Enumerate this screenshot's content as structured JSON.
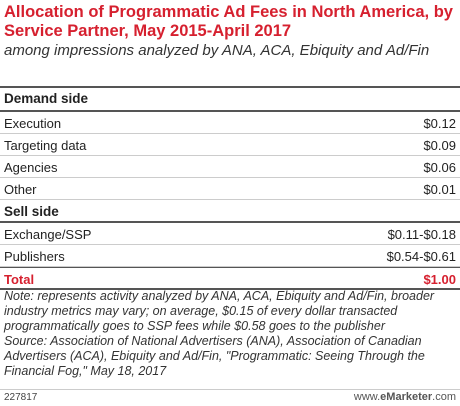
{
  "chart_data": {
    "type": "table",
    "title": "Allocation of Programmatic Ad Fees in North America, by Service Partner, May 2015-April 2017",
    "subtitle": "among impressions analyzed by ANA, ACA, Ebiquity and Ad/Fin",
    "sections": [
      {
        "name": "Demand side",
        "rows": [
          {
            "label": "Execution",
            "value": "$0.12"
          },
          {
            "label": "Targeting data",
            "value": "$0.09"
          },
          {
            "label": "Agencies",
            "value": "$0.06"
          },
          {
            "label": "Other",
            "value": "$0.01"
          }
        ]
      },
      {
        "name": "Sell side",
        "rows": [
          {
            "label": "Exchange/SSP",
            "value": "$0.11-$0.18"
          },
          {
            "label": "Publishers",
            "value": "$0.54-$0.61"
          }
        ]
      }
    ],
    "total": {
      "label": "Total",
      "value": "$1.00"
    }
  },
  "note": "Note: represents activity analyzed by ANA, ACA, Ebiquity and Ad/Fin, broader industry metrics may vary; on average, $0.15 of every dollar transacted programmatically goes to SSP fees while $0.58 goes to the publisher",
  "source": "Source: Association of National Advertisers (ANA), Association of Canadian Advertisers (ACA), Ebiquity and Ad/Fin, \"Programmatic: Seeing Through the Financial Fog,\" May 18, 2017",
  "footer": {
    "chart_id": "227817",
    "brand_prefix": "www.",
    "brand_name": "eMarketer",
    "brand_suffix": ".com"
  },
  "colors": {
    "accent": "#d6202f",
    "text": "#222222",
    "rule": "#555555",
    "divider": "#cccccc"
  }
}
